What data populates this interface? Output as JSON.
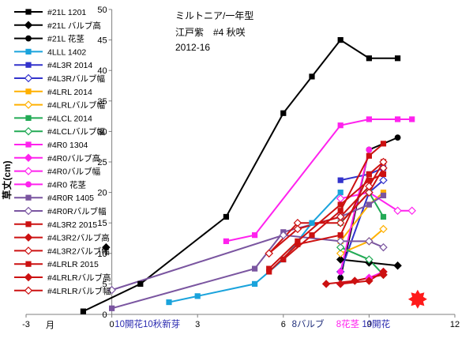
{
  "chart_data": {
    "type": "scatter",
    "title_lines": [
      "ミルトニア/一年型",
      "江戸紫　#4 秋咲",
      "2012-16"
    ],
    "ylabel": "草丈(cm)",
    "xlabel": "月",
    "xlim": [
      -3,
      12
    ],
    "ylim": [
      0,
      50
    ],
    "xticks": [
      -3,
      0,
      3,
      6,
      9,
      12
    ],
    "yticks": [
      0,
      5,
      10,
      15,
      20,
      25,
      30,
      35,
      40,
      45,
      50
    ],
    "grid": false,
    "legend_position": "left",
    "series": [
      {
        "name": "#21L 1201",
        "color": "#000000",
        "marker": "square",
        "points": [
          [
            -1,
            0.5
          ],
          [
            1,
            5
          ],
          [
            4,
            16
          ],
          [
            6,
            33
          ],
          [
            7,
            39
          ],
          [
            8,
            45
          ],
          [
            9,
            42
          ],
          [
            10,
            42
          ]
        ]
      },
      {
        "name": "#21L バルブ高",
        "color": "#000000",
        "marker": "diamond",
        "points": [
          [
            8,
            9
          ],
          [
            9,
            8.5
          ],
          [
            10,
            8
          ]
        ]
      },
      {
        "name": "#21L 花茎",
        "color": "#000000",
        "marker": "circle",
        "points": [
          [
            8,
            6
          ],
          [
            9,
            27
          ],
          [
            10,
            29
          ]
        ]
      },
      {
        "name": "4LLL 1402",
        "color": "#1aa3dc",
        "marker": "square",
        "points": [
          [
            2,
            2
          ],
          [
            3,
            3
          ],
          [
            5,
            5
          ],
          [
            6,
            9
          ],
          [
            7,
            15
          ],
          [
            8,
            20
          ]
        ]
      },
      {
        "name": "#4L3R 2014",
        "color": "#3333cc",
        "marker": "square",
        "points": [
          [
            8,
            22
          ],
          [
            9,
            23
          ],
          [
            9.5,
            24
          ]
        ]
      },
      {
        "name": "#4L3Rバルブ幅",
        "color": "#3333cc",
        "marker": "diamond-open",
        "points": [
          [
            8,
            7
          ],
          [
            9,
            20
          ],
          [
            9.5,
            22
          ]
        ]
      },
      {
        "name": "#4LRL 2014",
        "color": "#ffb000",
        "marker": "square",
        "points": [
          [
            8,
            12
          ],
          [
            9,
            18
          ],
          [
            9.5,
            20
          ]
        ]
      },
      {
        "name": "#4LRLバルブ幅",
        "color": "#ffb000",
        "marker": "diamond-open",
        "points": [
          [
            8,
            10
          ],
          [
            9,
            12
          ],
          [
            9.5,
            14
          ]
        ]
      },
      {
        "name": "#4LCL 2014",
        "color": "#22aa55",
        "marker": "square",
        "points": [
          [
            8,
            15
          ],
          [
            9,
            20
          ],
          [
            9.5,
            16
          ]
        ]
      },
      {
        "name": "#4LCLバルブ幅",
        "color": "#22aa55",
        "marker": "diamond-open",
        "points": [
          [
            8,
            11
          ],
          [
            9,
            9
          ],
          [
            9.5,
            6.5
          ]
        ]
      },
      {
        "name": "#4R0 1304",
        "color": "#ff22ee",
        "marker": "square",
        "points": [
          [
            4,
            12
          ],
          [
            5,
            13
          ],
          [
            8,
            31
          ],
          [
            9,
            32
          ],
          [
            10,
            32
          ],
          [
            10.5,
            32
          ]
        ]
      },
      {
        "name": "#4R0バルブ高",
        "color": "#ff22ee",
        "marker": "diamond",
        "points": [
          [
            8,
            5
          ],
          [
            9,
            6
          ],
          [
            9.5,
            7
          ]
        ]
      },
      {
        "name": "#4R0バルブ幅",
        "color": "#ff22ee",
        "marker": "diamond-open",
        "points": [
          [
            8,
            19
          ],
          [
            9,
            20
          ],
          [
            10,
            17
          ],
          [
            10.5,
            17
          ]
        ]
      },
      {
        "name": "#4R0 花茎",
        "color": "#ff22ee",
        "marker": "circle",
        "points": [
          [
            8,
            7
          ],
          [
            9,
            27
          ]
        ]
      },
      {
        "name": "#4R0R 1405",
        "color": "#7a55a0",
        "marker": "square",
        "points": [
          [
            0,
            1
          ],
          [
            5,
            7.5
          ],
          [
            6,
            13.5
          ],
          [
            8,
            16
          ],
          [
            9,
            18
          ],
          [
            9.5,
            19.5
          ]
        ]
      },
      {
        "name": "#4R0Rバルブ幅",
        "color": "#7a55a0",
        "marker": "diamond-open",
        "points": [
          [
            0,
            4
          ],
          [
            6,
            13
          ],
          [
            8,
            12
          ],
          [
            9,
            12
          ],
          [
            9.5,
            11
          ]
        ]
      },
      {
        "name": "#4L3R2 2015",
        "color": "#cc1111",
        "marker": "square",
        "points": [
          [
            5.5,
            7
          ],
          [
            6.5,
            11.5
          ],
          [
            8,
            13
          ],
          [
            9,
            23
          ],
          [
            9.5,
            25
          ]
        ]
      },
      {
        "name": "#4L3R2バルブ高",
        "color": "#cc1111",
        "marker": "diamond",
        "points": [
          [
            8,
            5
          ],
          [
            9,
            5.5
          ],
          [
            9.5,
            7
          ]
        ]
      },
      {
        "name": "#4L3R2バルブ幅",
        "color": "#cc1111",
        "marker": "diamond-open",
        "points": [
          [
            5.5,
            10
          ],
          [
            6.5,
            15
          ],
          [
            8,
            15
          ],
          [
            9,
            20
          ],
          [
            9.5,
            24
          ]
        ]
      },
      {
        "name": "#4LRLR 2015",
        "color": "#cc1111",
        "marker": "square",
        "points": [
          [
            5.5,
            7.5
          ],
          [
            6.5,
            12
          ],
          [
            8,
            18
          ],
          [
            9,
            22
          ],
          [
            9.5,
            23
          ]
        ]
      },
      {
        "name": "#4LRLRバルブ高",
        "color": "#cc1111",
        "marker": "diamond",
        "points": [
          [
            7.5,
            5
          ],
          [
            8.5,
            5.5
          ],
          [
            9.5,
            6.5
          ]
        ]
      },
      {
        "name": "#4LRLRバルブ幅",
        "color": "#cc1111",
        "marker": "diamond-open",
        "points": [
          [
            5.5,
            10
          ],
          [
            6.5,
            14
          ],
          [
            8,
            16
          ],
          [
            9,
            21
          ],
          [
            9.5,
            25
          ]
        ]
      },
      {
        "name": "",
        "color": "#cc1111",
        "marker": "square",
        "points": [
          [
            6,
            9
          ],
          [
            7,
            13
          ],
          [
            8,
            17
          ],
          [
            9,
            26
          ],
          [
            9.5,
            28
          ]
        ]
      }
    ],
    "annotations": [
      {
        "text": "10開花10秋新芽",
        "x": 0.1,
        "color": "#2a2ab0"
      },
      {
        "text": "8バルブ",
        "x": 6.3,
        "color": "#1f2d7a"
      },
      {
        "text": "8花茎",
        "x": 7.85,
        "color": "#ff22ee"
      },
      {
        "text": "10開花",
        "x": 8.75,
        "color": "#2a2ab0"
      }
    ],
    "extra_marks": [
      {
        "shape": "diamond",
        "x": -0.2,
        "y": 11,
        "color": "#000000"
      },
      {
        "shape": "star-burst",
        "x": 10.7,
        "y": 2.5,
        "color": "#ff1a1a"
      }
    ]
  }
}
